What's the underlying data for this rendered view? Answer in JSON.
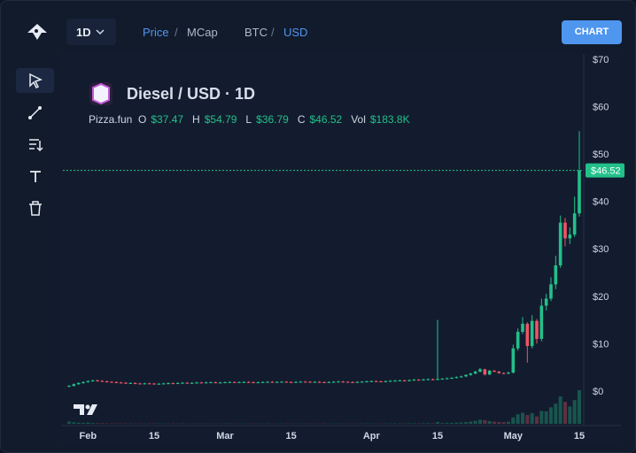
{
  "toolbar": {
    "timeframe": "1D",
    "price": "Price",
    "sep1": "/",
    "mcap": "MCap",
    "base": "BTC",
    "sep2": "/",
    "quote": "USD",
    "button": "CHART"
  },
  "chart_data": {
    "type": "candlestick",
    "title": "Diesel / USD · 1D",
    "legend": {
      "source": "Pizza.fun",
      "items": [
        {
          "key": "O",
          "value": "$37.47"
        },
        {
          "key": "H",
          "value": "$54.79"
        },
        {
          "key": "L",
          "value": "$36.79"
        },
        {
          "key": "C",
          "value": "$46.52"
        },
        {
          "key": "Vol",
          "value": "$183.8K"
        }
      ]
    },
    "up_color": "#22c08a",
    "down_color": "#ef5466",
    "categories": [
      null,
      null,
      null,
      null,
      "Feb",
      null,
      null,
      null,
      null,
      null,
      null,
      null,
      null,
      null,
      null,
      null,
      null,
      null,
      "15",
      null,
      null,
      null,
      null,
      null,
      null,
      null,
      null,
      null,
      null,
      null,
      null,
      null,
      null,
      "Mar",
      null,
      null,
      null,
      null,
      null,
      null,
      null,
      null,
      null,
      null,
      null,
      null,
      null,
      "15",
      null,
      null,
      null,
      null,
      null,
      null,
      null,
      null,
      null,
      null,
      null,
      null,
      null,
      null,
      null,
      null,
      "Apr",
      null,
      null,
      null,
      null,
      null,
      null,
      null,
      null,
      null,
      null,
      null,
      null,
      null,
      "15",
      null,
      null,
      null,
      null,
      null,
      null,
      null,
      null,
      null,
      null,
      null,
      null,
      null,
      null,
      null,
      "May",
      null,
      null,
      null,
      null,
      null,
      null,
      null,
      null,
      null,
      null,
      null,
      null,
      null,
      "15"
    ],
    "open": [
      1.0,
      1.1,
      1.45,
      1.7,
      1.9,
      2.1,
      2.25,
      2.15,
      2.05,
      1.95,
      1.9,
      1.8,
      1.75,
      1.65,
      1.7,
      1.6,
      1.55,
      1.62,
      1.58,
      1.5,
      1.55,
      1.6,
      1.66,
      1.62,
      1.7,
      1.75,
      1.68,
      1.72,
      1.8,
      1.76,
      1.82,
      1.85,
      1.78,
      1.8,
      1.86,
      1.9,
      1.84,
      1.88,
      1.92,
      1.86,
      1.8,
      1.85,
      1.9,
      1.94,
      1.88,
      1.92,
      1.96,
      1.9,
      1.86,
      1.92,
      1.98,
      1.95,
      1.9,
      1.94,
      1.88,
      1.84,
      1.9,
      1.95,
      2.0,
      1.94,
      1.9,
      1.86,
      1.92,
      1.98,
      2.04,
      2.1,
      2.05,
      2.0,
      2.08,
      2.15,
      2.2,
      2.25,
      2.18,
      2.3,
      2.4,
      2.35,
      2.45,
      2.5,
      2.42,
      2.55,
      2.6,
      2.7,
      2.8,
      2.95,
      3.1,
      3.4,
      3.7,
      4.1,
      4.6,
      3.5,
      4.3,
      4.1,
      3.8,
      3.7,
      3.9,
      9.0,
      12.5,
      14.2,
      9.5,
      14.8,
      11.0,
      18.0,
      19.5,
      22.5,
      26.5,
      35.5,
      32.2,
      33.0,
      37.47
    ],
    "high": [
      1.25,
      1.6,
      1.85,
      2.05,
      2.25,
      2.4,
      2.4,
      2.3,
      2.2,
      2.1,
      2.05,
      1.95,
      1.9,
      1.85,
      1.85,
      1.75,
      1.77,
      1.77,
      1.73,
      1.7,
      1.75,
      1.81,
      1.81,
      1.85,
      1.9,
      1.9,
      1.87,
      1.95,
      1.95,
      1.97,
      2.0,
      2.0,
      1.95,
      2.01,
      2.05,
      2.05,
      2.03,
      2.07,
      2.07,
      2.01,
      2.0,
      2.05,
      2.09,
      2.09,
      2.07,
      2.11,
      2.11,
      2.05,
      2.07,
      2.13,
      2.13,
      2.1,
      2.09,
      2.09,
      2.03,
      2.05,
      2.1,
      2.15,
      2.15,
      2.09,
      2.05,
      2.07,
      2.13,
      2.19,
      2.25,
      2.25,
      2.2,
      2.23,
      2.3,
      2.35,
      2.4,
      2.4,
      2.45,
      2.55,
      2.55,
      2.6,
      2.65,
      2.65,
      15.0,
      2.75,
      2.85,
      2.95,
      3.1,
      3.25,
      3.55,
      3.85,
      4.3,
      4.85,
      4.7,
      4.45,
      4.45,
      4.25,
      3.95,
      4.05,
      9.8,
      13.2,
      15.6,
      14.5,
      16.0,
      15.2,
      19.5,
      20.5,
      24.0,
      28.5,
      37.0,
      36.5,
      34.5,
      41.0,
      54.79
    ],
    "low": [
      0.85,
      0.95,
      1.3,
      1.55,
      1.75,
      1.95,
      2.0,
      1.9,
      1.8,
      1.75,
      1.65,
      1.6,
      1.5,
      1.5,
      1.45,
      1.4,
      1.4,
      1.43,
      1.35,
      1.35,
      1.4,
      1.45,
      1.47,
      1.47,
      1.55,
      1.53,
      1.53,
      1.57,
      1.61,
      1.61,
      1.67,
      1.63,
      1.63,
      1.65,
      1.71,
      1.69,
      1.69,
      1.73,
      1.71,
      1.65,
      1.65,
      1.7,
      1.75,
      1.73,
      1.73,
      1.77,
      1.75,
      1.71,
      1.71,
      1.77,
      1.8,
      1.75,
      1.75,
      1.73,
      1.69,
      1.69,
      1.75,
      1.8,
      1.79,
      1.75,
      1.71,
      1.71,
      1.77,
      1.83,
      1.89,
      1.9,
      1.85,
      1.85,
      1.93,
      2.0,
      2.05,
      2.03,
      2.03,
      2.15,
      2.2,
      2.2,
      2.3,
      2.27,
      2.27,
      2.4,
      2.45,
      2.55,
      2.65,
      2.8,
      2.95,
      3.25,
      3.55,
      3.95,
      3.3,
      3.35,
      3.95,
      3.65,
      3.55,
      3.55,
      3.7,
      8.5,
      12.0,
      6.0,
      9.0,
      10.0,
      10.5,
      17.0,
      19.0,
      21.5,
      26.0,
      30.5,
      31.0,
      32.5,
      36.79
    ],
    "close": [
      1.1,
      1.45,
      1.7,
      1.9,
      2.1,
      2.25,
      2.15,
      2.05,
      1.95,
      1.9,
      1.8,
      1.75,
      1.65,
      1.7,
      1.6,
      1.55,
      1.62,
      1.58,
      1.5,
      1.55,
      1.6,
      1.66,
      1.62,
      1.7,
      1.75,
      1.68,
      1.72,
      1.8,
      1.76,
      1.82,
      1.85,
      1.78,
      1.8,
      1.86,
      1.9,
      1.84,
      1.88,
      1.92,
      1.86,
      1.8,
      1.85,
      1.9,
      1.94,
      1.88,
      1.92,
      1.96,
      1.9,
      1.86,
      1.92,
      1.98,
      1.95,
      1.9,
      1.94,
      1.88,
      1.84,
      1.9,
      1.95,
      2.0,
      1.94,
      1.9,
      1.86,
      1.92,
      1.98,
      2.04,
      2.1,
      2.05,
      2.0,
      2.08,
      2.15,
      2.2,
      2.25,
      2.18,
      2.3,
      2.4,
      2.35,
      2.45,
      2.5,
      2.42,
      2.55,
      2.6,
      2.7,
      2.8,
      2.95,
      3.1,
      3.4,
      3.7,
      4.1,
      4.6,
      3.5,
      4.3,
      4.1,
      3.8,
      3.7,
      3.9,
      9.0,
      12.5,
      14.2,
      9.5,
      14.8,
      11.0,
      18.0,
      19.5,
      22.5,
      26.5,
      35.5,
      32.2,
      33.0,
      37.47,
      46.52
    ],
    "volume": [
      12000,
      8000,
      6000,
      5000,
      7000,
      4000,
      3000,
      3000,
      2500,
      2000,
      2000,
      1800,
      2200,
      1500,
      1700,
      1600,
      1400,
      1800,
      2000,
      1500,
      1600,
      1400,
      1500,
      1300,
      1700,
      1200,
      1400,
      1600,
      1500,
      1300,
      1400,
      1200,
      1300,
      1500,
      1600,
      1400,
      1300,
      1200,
      1500,
      1400,
      1300,
      1400,
      1600,
      1200,
      1300,
      1500,
      1400,
      1300,
      1200,
      1400,
      1500,
      1300,
      1200,
      1400,
      1600,
      1300,
      1200,
      1500,
      1400,
      1300,
      1200,
      1400,
      1500,
      1700,
      1600,
      1400,
      1300,
      1500,
      1800,
      2000,
      2200,
      1800,
      2400,
      2600,
      2200,
      2800,
      3000,
      2600,
      9000,
      4000,
      4500,
      5000,
      6000,
      7000,
      9000,
      12000,
      16000,
      22000,
      20000,
      15000,
      12000,
      10000,
      9000,
      11000,
      35000,
      52000,
      60000,
      48000,
      58000,
      40000,
      70000,
      68000,
      90000,
      110000,
      150000,
      120000,
      95000,
      130000,
      183800
    ],
    "last_price": {
      "value": 46.52,
      "label": "$46.52"
    },
    "ylim": [
      -6.9,
      70.7
    ],
    "yticks": [
      {
        "value": 0,
        "label": "$0"
      },
      {
        "value": 10,
        "label": "$10"
      },
      {
        "value": 20,
        "label": "$20"
      },
      {
        "value": 30,
        "label": "$30"
      },
      {
        "value": 40,
        "label": "$40"
      },
      {
        "value": 50,
        "label": "$50"
      },
      {
        "value": 60,
        "label": "$60"
      },
      {
        "value": 70,
        "label": "$70"
      }
    ],
    "grid": false
  }
}
